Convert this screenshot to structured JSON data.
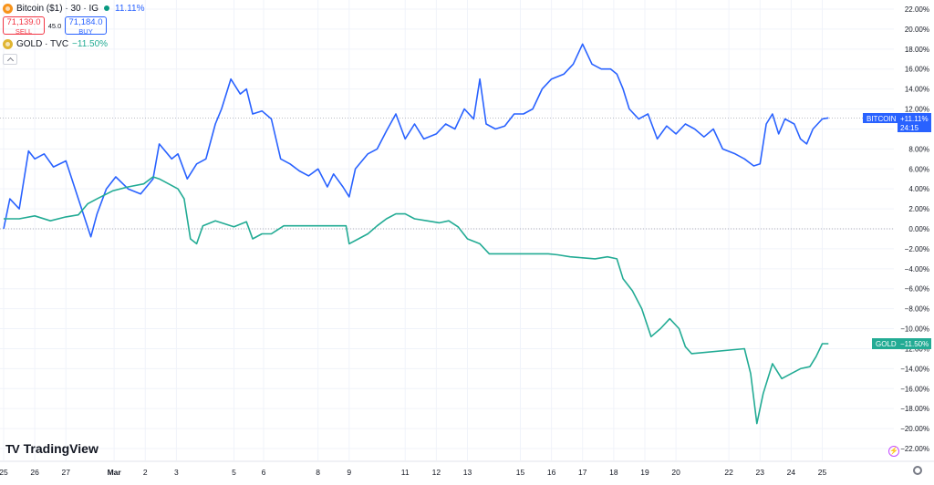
{
  "header": {
    "bitcoin": {
      "title": "Bitcoin ($1) · 30 · IG",
      "change": "11.11%",
      "sell_price": "71,139.0",
      "sell_label": "SELL",
      "spread": "45.0",
      "buy_price": "71,184.0",
      "buy_label": "BUY",
      "icon": "bitcoin-icon",
      "color": "#2962ff"
    },
    "gold": {
      "title": "GOLD · TVC",
      "change": "−11.50%",
      "icon": "gold-icon",
      "color": "#22ab94"
    }
  },
  "branding": {
    "logo_text": "TradingView"
  },
  "price_scale": {
    "bitcoin_tag": "BITCOIN",
    "bitcoin_value": "+11.11%",
    "bitcoin_countdown": "24:15",
    "gold_tag": "GOLD",
    "gold_value": "−11.50%"
  },
  "chart_data": {
    "type": "line",
    "title": "",
    "xlabel": "",
    "ylabel": "",
    "ylim": [
      -22,
      22
    ],
    "y_ticks": [
      22,
      20,
      18,
      16,
      14,
      12,
      10,
      8,
      6,
      4,
      2,
      0,
      -2,
      -4,
      -6,
      -8,
      -10,
      -12,
      -14,
      -16,
      -18,
      -20,
      -22
    ],
    "y_tick_labels": [
      "22.00%",
      "20.00%",
      "18.00%",
      "16.00%",
      "14.00%",
      "12.00%",
      "10.00%",
      "8.00%",
      "6.00%",
      "4.00%",
      "2.00%",
      "0.00%",
      "−2.00%",
      "−4.00%",
      "−6.00%",
      "−8.00%",
      "−10.00%",
      "−12.00%",
      "−14.00%",
      "−16.00%",
      "−18.00%",
      "−20.00%",
      "−22.00%"
    ],
    "x_domain": [
      0,
      28.6
    ],
    "x_ticks": [
      {
        "x": 0,
        "label": "25"
      },
      {
        "x": 1,
        "label": "26"
      },
      {
        "x": 2,
        "label": "27"
      },
      {
        "x": 3.55,
        "label": "Mar"
      },
      {
        "x": 4.55,
        "label": "2"
      },
      {
        "x": 5.55,
        "label": "3"
      },
      {
        "x": 7.4,
        "label": "5"
      },
      {
        "x": 8.35,
        "label": "6"
      },
      {
        "x": 10.1,
        "label": "8"
      },
      {
        "x": 11.1,
        "label": "9"
      },
      {
        "x": 12.9,
        "label": "11"
      },
      {
        "x": 13.9,
        "label": "12"
      },
      {
        "x": 14.9,
        "label": "13"
      },
      {
        "x": 16.6,
        "label": "15"
      },
      {
        "x": 17.6,
        "label": "16"
      },
      {
        "x": 18.6,
        "label": "17"
      },
      {
        "x": 19.6,
        "label": "18"
      },
      {
        "x": 20.6,
        "label": "19"
      },
      {
        "x": 21.6,
        "label": "20"
      },
      {
        "x": 23.3,
        "label": "22"
      },
      {
        "x": 24.3,
        "label": "23"
      },
      {
        "x": 25.3,
        "label": "24"
      },
      {
        "x": 26.3,
        "label": "25"
      }
    ],
    "grid": true,
    "legend": "top-left",
    "series": [
      {
        "name": "Bitcoin ($1) · 30 · IG",
        "color": "#2962ff",
        "points": [
          [
            0,
            0
          ],
          [
            0.2,
            3
          ],
          [
            0.5,
            2
          ],
          [
            0.8,
            7.8
          ],
          [
            1.0,
            7
          ],
          [
            1.3,
            7.5
          ],
          [
            1.6,
            6.2
          ],
          [
            2.0,
            6.8
          ],
          [
            2.4,
            3
          ],
          [
            2.8,
            -0.8
          ],
          [
            3.0,
            1.5
          ],
          [
            3.3,
            4
          ],
          [
            3.6,
            5.2
          ],
          [
            4.0,
            4
          ],
          [
            4.4,
            3.5
          ],
          [
            4.8,
            5
          ],
          [
            5.0,
            8.5
          ],
          [
            5.4,
            7
          ],
          [
            5.6,
            7.5
          ],
          [
            5.9,
            5
          ],
          [
            6.2,
            6.5
          ],
          [
            6.5,
            7
          ],
          [
            6.8,
            10.5
          ],
          [
            7.0,
            12
          ],
          [
            7.3,
            15
          ],
          [
            7.6,
            13.5
          ],
          [
            7.8,
            14
          ],
          [
            8.0,
            11.5
          ],
          [
            8.3,
            11.8
          ],
          [
            8.6,
            11
          ],
          [
            8.9,
            7
          ],
          [
            9.2,
            6.5
          ],
          [
            9.5,
            5.8
          ],
          [
            9.8,
            5.3
          ],
          [
            10.1,
            6
          ],
          [
            10.4,
            4.2
          ],
          [
            10.6,
            5.5
          ],
          [
            10.9,
            4.2
          ],
          [
            11.1,
            3.2
          ],
          [
            11.3,
            6
          ],
          [
            11.7,
            7.5
          ],
          [
            12.0,
            8
          ],
          [
            12.3,
            9.8
          ],
          [
            12.6,
            11.5
          ],
          [
            12.9,
            9
          ],
          [
            13.2,
            10.5
          ],
          [
            13.5,
            9
          ],
          [
            13.9,
            9.5
          ],
          [
            14.2,
            10.5
          ],
          [
            14.5,
            10
          ],
          [
            14.8,
            12
          ],
          [
            15.1,
            11
          ],
          [
            15.3,
            15
          ],
          [
            15.5,
            10.5
          ],
          [
            15.8,
            10
          ],
          [
            16.1,
            10.3
          ],
          [
            16.4,
            11.5
          ],
          [
            16.7,
            11.5
          ],
          [
            17.0,
            12
          ],
          [
            17.3,
            14
          ],
          [
            17.6,
            15
          ],
          [
            18.0,
            15.5
          ],
          [
            18.3,
            16.5
          ],
          [
            18.6,
            18.5
          ],
          [
            18.9,
            16.5
          ],
          [
            19.2,
            16
          ],
          [
            19.5,
            16
          ],
          [
            19.7,
            15.5
          ],
          [
            19.9,
            14
          ],
          [
            20.1,
            12
          ],
          [
            20.4,
            11
          ],
          [
            20.7,
            11.5
          ],
          [
            21.0,
            9
          ],
          [
            21.3,
            10.3
          ],
          [
            21.6,
            9.5
          ],
          [
            21.9,
            10.5
          ],
          [
            22.2,
            10
          ],
          [
            22.5,
            9.2
          ],
          [
            22.8,
            10
          ],
          [
            23.1,
            8
          ],
          [
            23.5,
            7.5
          ],
          [
            23.8,
            7
          ],
          [
            24.1,
            6.3
          ],
          [
            24.3,
            6.5
          ],
          [
            24.5,
            10.5
          ],
          [
            24.7,
            11.5
          ],
          [
            24.9,
            9.5
          ],
          [
            25.1,
            11
          ],
          [
            25.4,
            10.5
          ],
          [
            25.6,
            9
          ],
          [
            25.8,
            8.5
          ],
          [
            26.0,
            10
          ],
          [
            26.3,
            11
          ],
          [
            26.5,
            11.11
          ]
        ]
      },
      {
        "name": "GOLD · TVC",
        "color": "#22ab94",
        "points": [
          [
            0,
            1
          ],
          [
            0.5,
            1
          ],
          [
            1.0,
            1.3
          ],
          [
            1.5,
            0.8
          ],
          [
            2.0,
            1.2
          ],
          [
            2.4,
            1.4
          ],
          [
            2.7,
            2.5
          ],
          [
            3.0,
            3
          ],
          [
            3.5,
            3.8
          ],
          [
            4.0,
            4.2
          ],
          [
            4.5,
            4.5
          ],
          [
            4.8,
            5.2
          ],
          [
            5.0,
            5
          ],
          [
            5.3,
            4.5
          ],
          [
            5.6,
            4
          ],
          [
            5.8,
            3
          ],
          [
            6.0,
            -1
          ],
          [
            6.2,
            -1.5
          ],
          [
            6.4,
            0.3
          ],
          [
            6.8,
            0.8
          ],
          [
            7.1,
            0.5
          ],
          [
            7.4,
            0.2
          ],
          [
            7.8,
            0.7
          ],
          [
            8.0,
            -1
          ],
          [
            8.3,
            -0.5
          ],
          [
            8.6,
            -0.5
          ],
          [
            9.0,
            0.3
          ],
          [
            11.0,
            0.3
          ],
          [
            11.1,
            -1.5
          ],
          [
            11.4,
            -1
          ],
          [
            11.7,
            -0.5
          ],
          [
            12.0,
            0.3
          ],
          [
            12.3,
            1
          ],
          [
            12.6,
            1.5
          ],
          [
            12.9,
            1.5
          ],
          [
            13.2,
            1
          ],
          [
            13.6,
            0.8
          ],
          [
            14.0,
            0.6
          ],
          [
            14.3,
            0.8
          ],
          [
            14.6,
            0.2
          ],
          [
            14.9,
            -1
          ],
          [
            15.3,
            -1.5
          ],
          [
            15.6,
            -2.5
          ],
          [
            17.5,
            -2.5
          ],
          [
            17.8,
            -2.6
          ],
          [
            18.2,
            -2.8
          ],
          [
            18.6,
            -2.9
          ],
          [
            19.0,
            -3
          ],
          [
            19.4,
            -2.8
          ],
          [
            19.7,
            -3
          ],
          [
            19.9,
            -5
          ],
          [
            20.2,
            -6.2
          ],
          [
            20.5,
            -8
          ],
          [
            20.8,
            -10.8
          ],
          [
            21.1,
            -10
          ],
          [
            21.4,
            -9
          ],
          [
            21.7,
            -10
          ],
          [
            21.9,
            -11.8
          ],
          [
            22.1,
            -12.5
          ],
          [
            23.8,
            -12
          ],
          [
            24.0,
            -14.5
          ],
          [
            24.2,
            -19.5
          ],
          [
            24.4,
            -16.5
          ],
          [
            24.7,
            -13.5
          ],
          [
            25.0,
            -15
          ],
          [
            25.3,
            -14.5
          ],
          [
            25.6,
            -14
          ],
          [
            25.9,
            -13.8
          ],
          [
            26.1,
            -12.8
          ],
          [
            26.3,
            -11.5
          ],
          [
            26.5,
            -11.5
          ]
        ]
      }
    ]
  }
}
